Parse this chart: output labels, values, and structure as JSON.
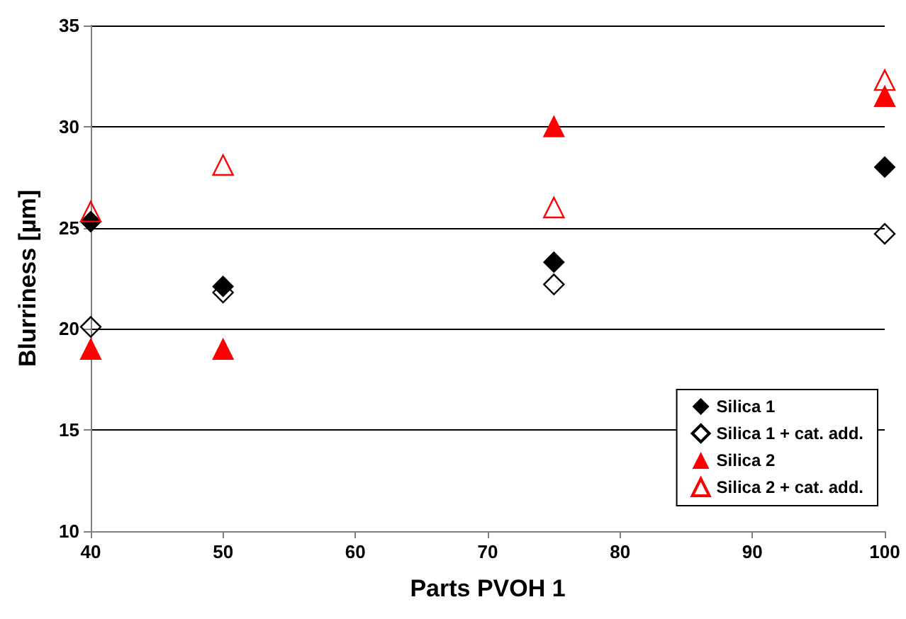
{
  "chart_data": {
    "type": "scatter",
    "xlabel": "Parts PVOH 1",
    "ylabel": "Blurriness [µm]",
    "xlim": [
      40,
      100
    ],
    "xticks": [
      40,
      50,
      60,
      70,
      80,
      90,
      100
    ],
    "ylim": [
      10,
      35
    ],
    "yticks": [
      10,
      15,
      20,
      25,
      30,
      35
    ],
    "grid": "y",
    "legend": "bottom right",
    "series": [
      {
        "name": "Silica 1",
        "color": "#000000",
        "marker": "diamond",
        "x": [
          40,
          50,
          75,
          100
        ],
        "values": [
          25.3,
          22.1,
          23.3,
          28.0
        ]
      },
      {
        "name": "Silica 1 + cat. add.",
        "color": "#000000",
        "marker": "diamond-open",
        "x": [
          40,
          50,
          75,
          100
        ],
        "values": [
          20.1,
          21.8,
          22.2,
          24.7
        ]
      },
      {
        "name": "Silica 2",
        "color": "#ff0000",
        "marker": "triangle",
        "x": [
          40,
          50,
          75,
          100
        ],
        "values": [
          19.0,
          19.0,
          30.0,
          31.5
        ]
      },
      {
        "name": "Silica 2 + cat. add.",
        "color": "#ff0000",
        "marker": "triangle-open",
        "x": [
          40,
          50,
          75,
          100
        ],
        "values": [
          25.8,
          28.1,
          26.0,
          32.3
        ]
      }
    ]
  }
}
